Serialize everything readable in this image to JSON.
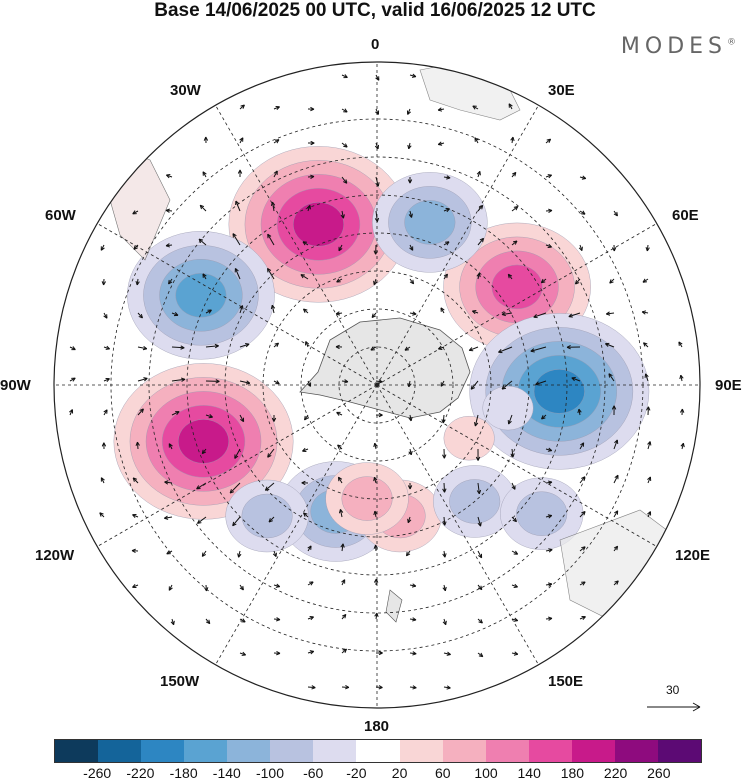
{
  "title": "Base 14/06/2025 00 UTC, valid 16/06/2025 12 UTC",
  "brand": "MODES",
  "brand_mark": "®",
  "longitude_labels": {
    "top": "0",
    "top_right": "30E",
    "right_upper": "60E",
    "right": "90E",
    "right_lower": "120E",
    "bottom_right": "150E",
    "bottom": "180",
    "bottom_left": "150W",
    "left_lower": "120W",
    "left": "90W",
    "left_upper": "60W",
    "top_left": "30W"
  },
  "reference_vector": "30",
  "colorbar": {
    "ticks": [
      "-260",
      "-220",
      "-180",
      "-140",
      "-100",
      "-60",
      "-20",
      "20",
      "60",
      "100",
      "140",
      "180",
      "220",
      "260"
    ],
    "colors": [
      "#0d3a5c",
      "#14649a",
      "#2d86c2",
      "#5aa3d2",
      "#8cb4da",
      "#b8c2e0",
      "#dddcef",
      "#ffffff",
      "#f9d6d6",
      "#f5b0bf",
      "#ef7fb0",
      "#e64aa0",
      "#c81a8a",
      "#8e0b7e",
      "#5c0a74"
    ]
  },
  "anomalies": [
    {
      "lat": -45,
      "lon": -20,
      "v": 210
    },
    {
      "lat": -38,
      "lon": -63,
      "v": -180
    },
    {
      "lat": -45,
      "lon": 55,
      "v": 190
    },
    {
      "lat": -42,
      "lon": 92,
      "v": -210
    },
    {
      "lat": -42,
      "lon": -108,
      "v": 230
    },
    {
      "lat": -45,
      "lon": 18,
      "v": -130
    },
    {
      "lat": -55,
      "lon": -162,
      "v": -150
    },
    {
      "lat": -45,
      "lon": -140,
      "v": -110
    },
    {
      "lat": -55,
      "lon": 170,
      "v": 110
    },
    {
      "lat": -50,
      "lon": 140,
      "v": -100
    },
    {
      "lat": -35,
      "lon": 128,
      "v": -90
    },
    {
      "lat": -60,
      "lon": -175,
      "v": 80
    },
    {
      "lat": -55,
      "lon": 100,
      "v": -60
    },
    {
      "lat": -62,
      "lon": 120,
      "v": 60
    }
  ]
}
